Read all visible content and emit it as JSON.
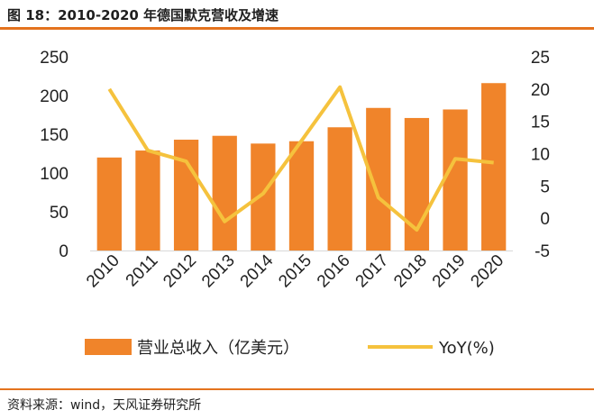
{
  "figure": {
    "title": "图 18：2010-2020 年德国默克营收及增速",
    "source": "资料来源：wind，天风证券研究所"
  },
  "colors": {
    "bar": "#f0842a",
    "line": "#f5c23d",
    "accent_rule": "#e4731e"
  },
  "chart_data": {
    "type": "bar",
    "categories": [
      "2010",
      "2011",
      "2012",
      "2013",
      "2014",
      "2015",
      "2016",
      "2017",
      "2018",
      "2019",
      "2020"
    ],
    "series": [
      {
        "name": "营业总收入（亿美元）",
        "type": "bar",
        "axis": "left",
        "values": [
          120,
          129,
          143,
          148,
          138,
          141,
          159,
          184,
          171,
          182,
          216
        ]
      },
      {
        "name": "YoY(%)",
        "type": "line",
        "axis": "right",
        "values": [
          20.0,
          10.5,
          8.8,
          -0.5,
          3.8,
          12.0,
          20.3,
          3.2,
          -1.8,
          9.2,
          8.6
        ]
      }
    ],
    "y_left": {
      "min": 0,
      "max": 250,
      "ticks": [
        0,
        50,
        100,
        150,
        200,
        250
      ]
    },
    "y_right": {
      "min": -5,
      "max": 25,
      "ticks": [
        -5,
        0,
        5,
        10,
        15,
        20,
        25
      ]
    },
    "grid": false,
    "legend_position": "bottom"
  }
}
